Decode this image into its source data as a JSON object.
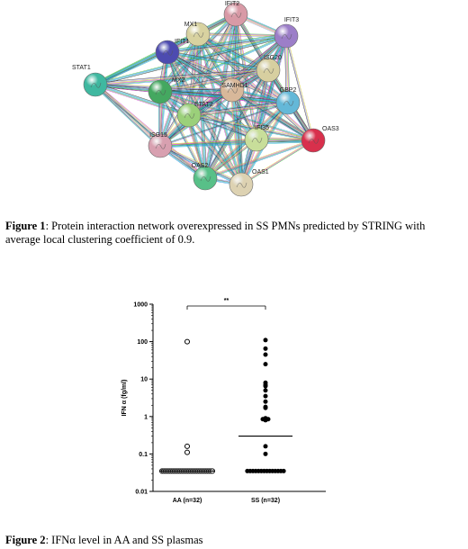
{
  "figure1": {
    "network": {
      "nodes": [
        {
          "id": "IFIT2",
          "color": "#d89aa6"
        },
        {
          "id": "MX1",
          "color": "#d8d2a0"
        },
        {
          "id": "IFIT3",
          "color": "#9c7ec8"
        },
        {
          "id": "IFIT1",
          "color": "#4d4bb0"
        },
        {
          "id": "ISG20",
          "color": "#d7cfa0"
        },
        {
          "id": "STAT1",
          "color": "#3fb8a0"
        },
        {
          "id": "MX2",
          "color": "#44a860"
        },
        {
          "id": "SAMHD1",
          "color": "#d8b89a"
        },
        {
          "id": "GBP2",
          "color": "#64b8d8"
        },
        {
          "id": "STAT2",
          "color": "#9bd07a"
        },
        {
          "id": "OAS3",
          "color": "#d8304c"
        },
        {
          "id": "IFI35",
          "color": "#c8de9a"
        },
        {
          "id": "ISG15",
          "color": "#d8a0b0"
        },
        {
          "id": "OAS2",
          "color": "#58c088"
        },
        {
          "id": "OAS1",
          "color": "#ddd2b2"
        }
      ],
      "edge_colors": [
        "#3a3a3a",
        "#28b8c8",
        "#1a8ae0",
        "#38b838",
        "#c838c8",
        "#d8d030",
        "#9890e8"
      ]
    },
    "caption_label": "Figure 1",
    "caption_text": ": Protein interaction network overexpressed in SS PMNs predicted by STRING with average local clustering coefficient of 0.9."
  },
  "figure2": {
    "caption_label": "Figure 2",
    "caption_text": ": IFNα level in AA and SS plasmas",
    "chart_data": {
      "type": "scatter",
      "ylabel": "IFN α (fg/ml)",
      "yscale": "log",
      "ylim": [
        0.01,
        1000
      ],
      "yticks": [
        "0.01",
        "0.1",
        "1",
        "10",
        "100",
        "1000"
      ],
      "categories": [
        "AA (n=32)",
        "SS (n=32)"
      ],
      "significance": "**",
      "series": [
        {
          "category": "AA (n=32)",
          "marker": "open-circle",
          "values": [
            0.035,
            0.035,
            0.035,
            0.035,
            0.035,
            0.035,
            0.035,
            0.035,
            0.035,
            0.035,
            0.035,
            0.035,
            0.035,
            0.035,
            0.035,
            0.035,
            0.035,
            0.035,
            0.035,
            0.035,
            0.035,
            0.035,
            0.035,
            0.035,
            0.035,
            0.035,
            0.035,
            0.035,
            0.035,
            0.11,
            0.16,
            100
          ],
          "median": 0.035
        },
        {
          "category": "SS (n=32)",
          "marker": "filled-circle",
          "values": [
            0.035,
            0.035,
            0.035,
            0.035,
            0.035,
            0.035,
            0.035,
            0.035,
            0.035,
            0.035,
            0.035,
            0.035,
            0.035,
            0.035,
            0.1,
            0.16,
            0.8,
            0.85,
            0.85,
            0.9,
            1.7,
            1.8,
            2.5,
            3.5,
            5,
            6.5,
            7,
            8,
            25,
            45,
            65,
            110
          ],
          "median": 0.3
        }
      ]
    }
  }
}
